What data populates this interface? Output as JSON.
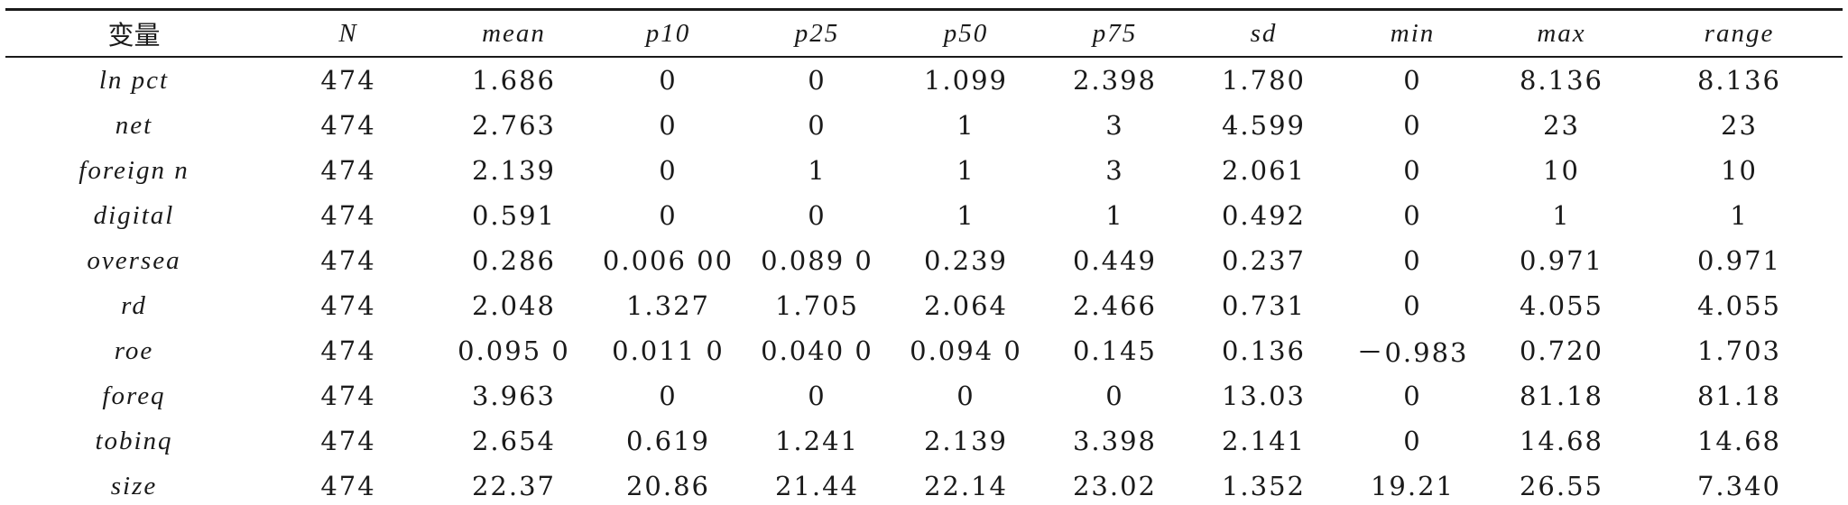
{
  "table": {
    "columns": [
      "变量",
      "N",
      "mean",
      "p10",
      "p25",
      "p50",
      "p75",
      "sd",
      "min",
      "max",
      "range"
    ],
    "rows": [
      [
        "ln pct",
        "474",
        "1.686",
        "0",
        "0",
        "1.099",
        "2.398",
        "1.780",
        "0",
        "8.136",
        "8.136"
      ],
      [
        "net",
        "474",
        "2.763",
        "0",
        "0",
        "1",
        "3",
        "4.599",
        "0",
        "23",
        "23"
      ],
      [
        "foreign n",
        "474",
        "2.139",
        "0",
        "1",
        "1",
        "3",
        "2.061",
        "0",
        "10",
        "10"
      ],
      [
        "digital",
        "474",
        "0.591",
        "0",
        "0",
        "1",
        "1",
        "0.492",
        "0",
        "1",
        "1"
      ],
      [
        "oversea",
        "474",
        "0.286",
        "0.006 00",
        "0.089 0",
        "0.239",
        "0.449",
        "0.237",
        "0",
        "0.971",
        "0.971"
      ],
      [
        "rd",
        "474",
        "2.048",
        "1.327",
        "1.705",
        "2.064",
        "2.466",
        "0.731",
        "0",
        "4.055",
        "4.055"
      ],
      [
        "roe",
        "474",
        "0.095 0",
        "0.011 0",
        "0.040 0",
        "0.094 0",
        "0.145",
        "0.136",
        "－0.983",
        "0.720",
        "1.703"
      ],
      [
        "foreq",
        "474",
        "3.963",
        "0",
        "0",
        "0",
        "0",
        "13.03",
        "0",
        "81.18",
        "81.18"
      ],
      [
        "tobinq",
        "474",
        "2.654",
        "0.619",
        "1.241",
        "2.139",
        "3.398",
        "2.141",
        "0",
        "14.68",
        "14.68"
      ],
      [
        "size",
        "474",
        "22.37",
        "20.86",
        "21.44",
        "22.14",
        "23.02",
        "1.352",
        "19.21",
        "26.55",
        "7.340"
      ]
    ]
  }
}
